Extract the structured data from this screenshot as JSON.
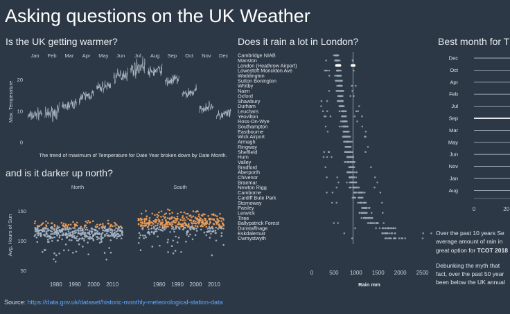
{
  "title": "Asking questions on the UK Weather",
  "source_label": "Source:",
  "source_url": "https://data.gov.uk/dataset/historic-monthly-meteorological-station-data",
  "questions": {
    "temperature": "Is the UK getting warmer?",
    "sun": "and is it darker up north?",
    "rain": "Does it rain a lot in London?",
    "tcot": "Best month for T"
  },
  "paragraph": {
    "p1_lines": [
      "Over the past 10 years Se",
      "average amount of rain in",
      "great option for "
    ],
    "p1_bold": "TCOT 2018",
    "p2_lines": [
      "Debunking the myth that",
      "fact, over the past 50 year",
      "been below the UK annual"
    ]
  },
  "chart_data": [
    {
      "id": "temperature",
      "type": "line",
      "months": [
        "Jan",
        "Feb",
        "Mar",
        "Apr",
        "May",
        "Jun",
        "Jul",
        "Aug",
        "Sep",
        "Oct",
        "Nov",
        "Dec"
      ],
      "ylabel": "Max. Temperature",
      "yticks": [
        0,
        10,
        20
      ],
      "ylim": [
        0,
        27
      ],
      "monthly_max_temp_range": [
        [
          6,
          11
        ],
        [
          6,
          12
        ],
        [
          9,
          14
        ],
        [
          12,
          17
        ],
        [
          15,
          20
        ],
        [
          18,
          24
        ],
        [
          20,
          27
        ],
        [
          20,
          25
        ],
        [
          17,
          22
        ],
        [
          13,
          18
        ],
        [
          9,
          13
        ],
        [
          6,
          11
        ]
      ],
      "caption": "The trend of maximum of  Temperature for Date Year broken down by Date Month."
    },
    {
      "id": "sun",
      "type": "scatter",
      "panels": [
        "North",
        "South"
      ],
      "ylabel": "Avg. Hours of Sun",
      "yticks": [
        50,
        100,
        150
      ],
      "ylim": [
        40,
        180
      ],
      "xticks": [
        1980,
        1990,
        2000,
        2010
      ],
      "xlim": [
        1965,
        2018
      ],
      "colors": {
        "above_threshold": "#f0a05a",
        "below_threshold": "#a9b7c6"
      },
      "threshold": 124
    },
    {
      "id": "rain",
      "type": "scatter",
      "xlabel": "Rain mm",
      "xticks": [
        0,
        500,
        1000,
        1500,
        2000,
        2500
      ],
      "xlim": [
        0,
        2600
      ],
      "reference_line": 930,
      "stations": [
        "Cambridge NIAB",
        "Manston",
        "London (Heathrow Airport)",
        "Lowestoft Monckton Ave",
        "Waddington",
        "Sutton Bonington",
        "Whitby",
        "Nairn",
        "Oxford",
        "Shawbury",
        "Durham",
        "Leuchars",
        "Yeovilton",
        "Ross-On-Wye",
        "Southampton",
        "Eastbourne",
        "Wick Airport",
        "Armagh",
        "Ringway",
        "Sheffield",
        "Hurn",
        "Valley",
        "Bradford",
        "Aberporth",
        "Chivenor",
        "Braemar",
        "Newton Rigg",
        "Camborne",
        "Cardiff Bute Park",
        "Stornoway",
        "Paisley",
        "Lerwick",
        "Tiree",
        "Ballypatrick Forest",
        "Dunstaffnage",
        "Eskdalemuir",
        "Cwmystwyth"
      ],
      "station_rain_mean": [
        560,
        580,
        600,
        610,
        610,
        620,
        630,
        640,
        650,
        660,
        670,
        690,
        730,
        730,
        740,
        770,
        790,
        800,
        830,
        830,
        850,
        860,
        880,
        890,
        900,
        930,
        950,
        1060,
        1060,
        1160,
        1190,
        1200,
        1250,
        1450,
        1680,
        1720,
        1850
      ],
      "highlight_station": "London (Heathrow Airport)"
    },
    {
      "id": "tcot",
      "type": "bar",
      "categories": [
        "Dec",
        "Oct",
        "Apr",
        "Feb",
        "Jul",
        "Sep",
        "Mar",
        "May",
        "Jun",
        "Nov",
        "Jan",
        "Aug"
      ],
      "highlight": "Sep",
      "xticks": [
        0,
        20
      ],
      "xlim": [
        0,
        60
      ]
    }
  ]
}
